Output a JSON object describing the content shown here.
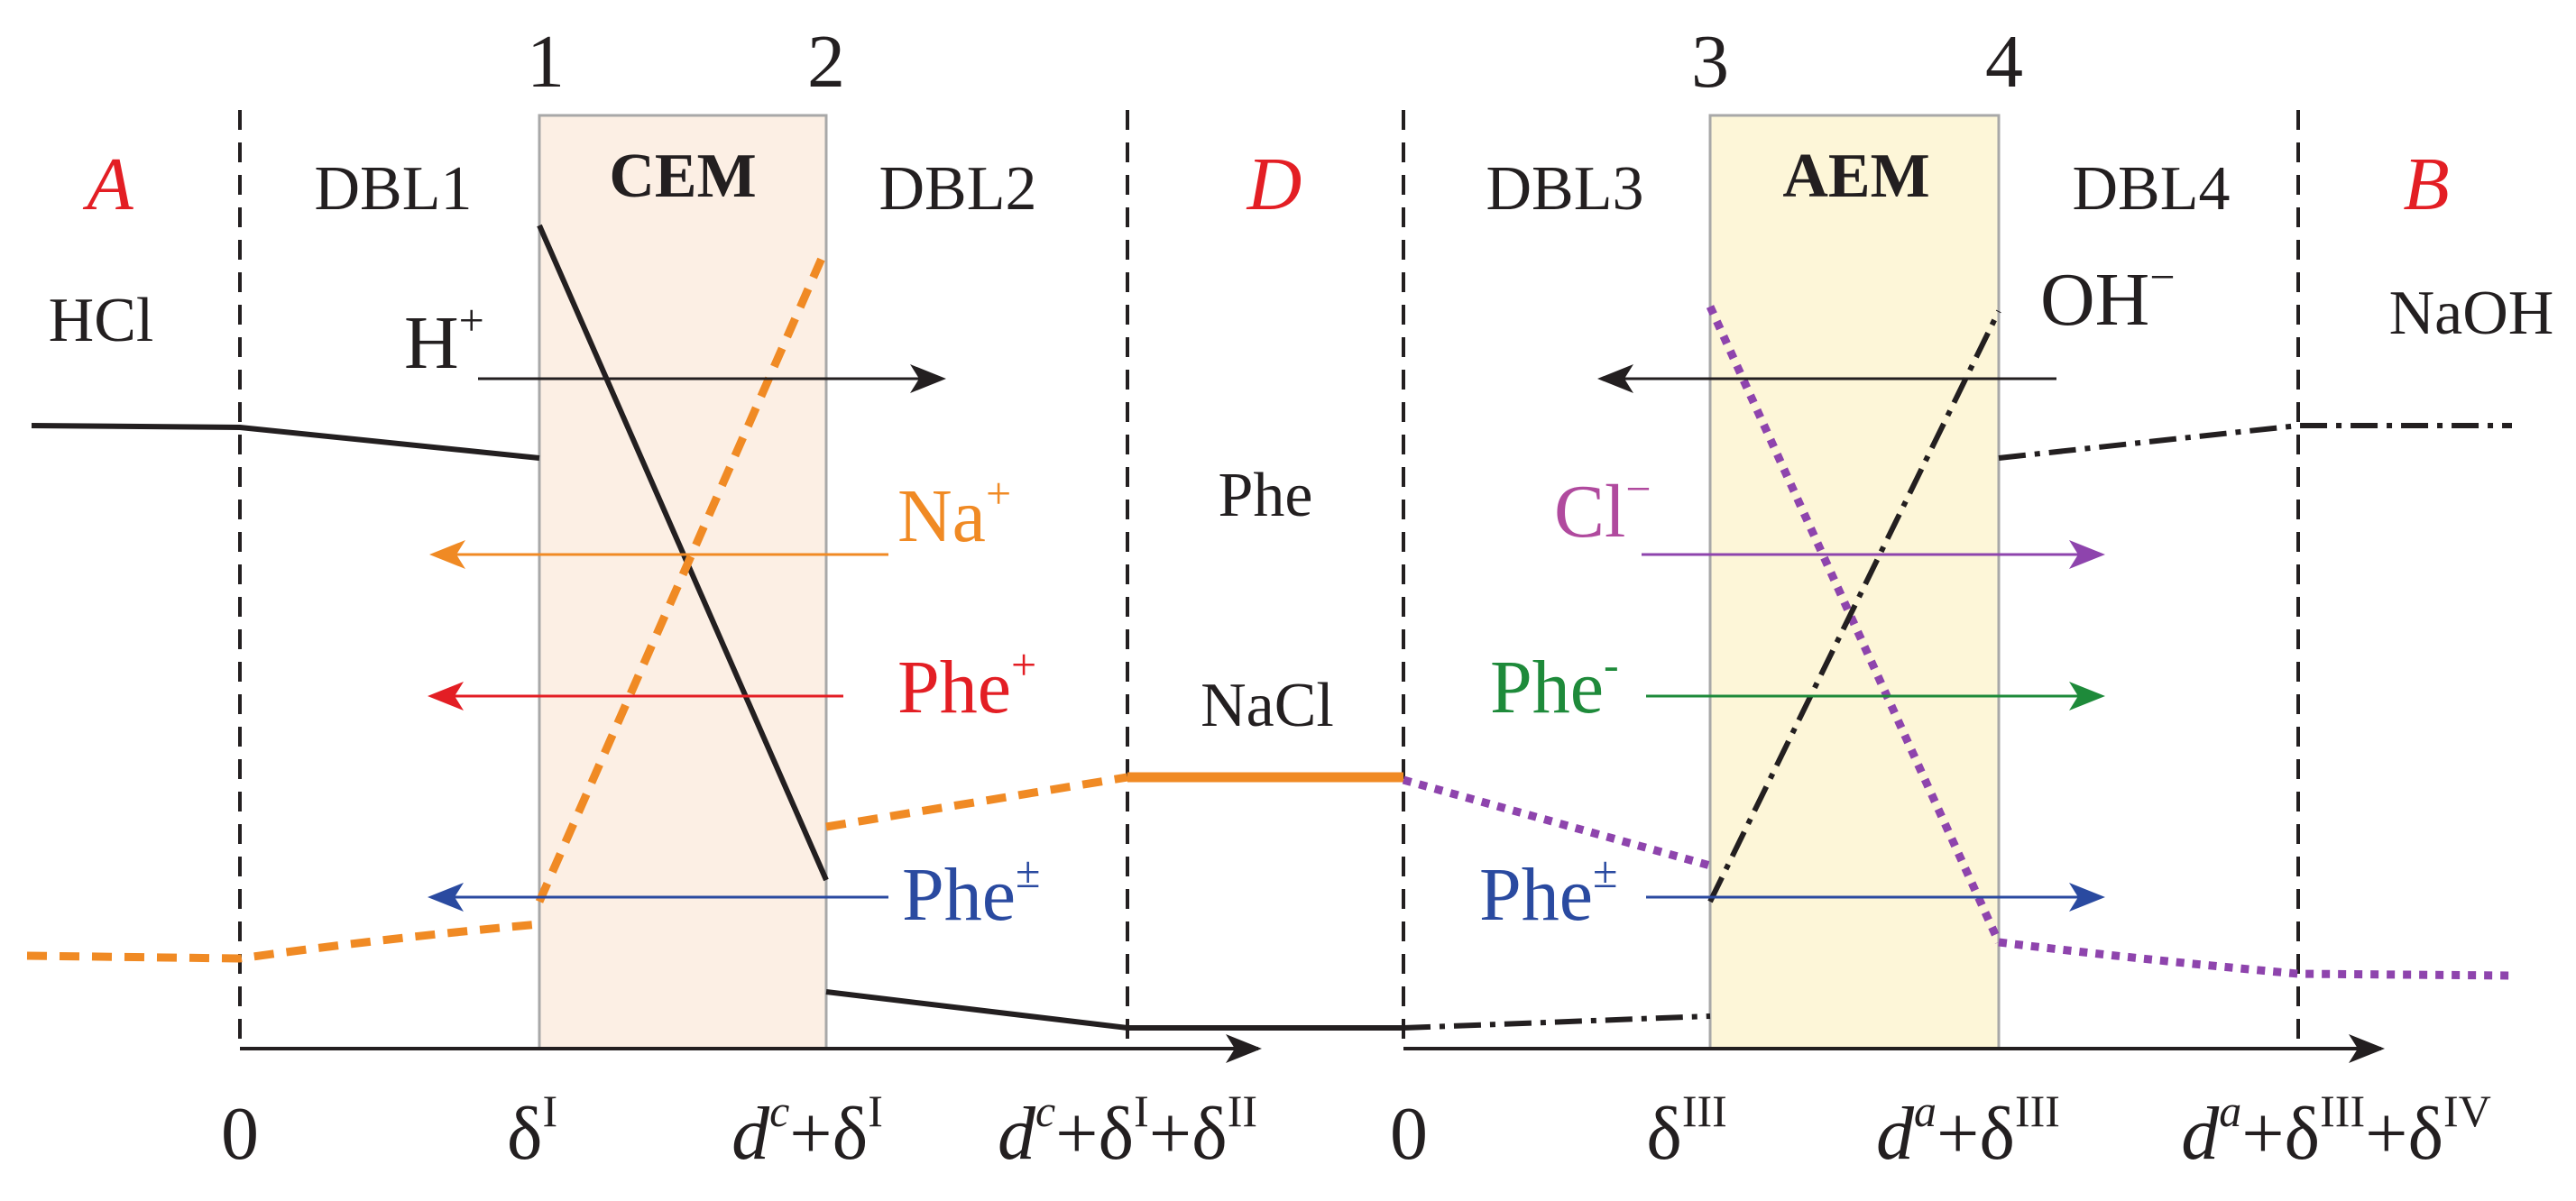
{
  "interfaces": {
    "i1": "1",
    "i2": "2",
    "i3": "3",
    "i4": "4"
  },
  "regions": {
    "A": "A",
    "D": "D",
    "B": "B",
    "dbl1": "DBL1",
    "dbl2": "DBL2",
    "dbl3": "DBL3",
    "dbl4": "DBL4",
    "cem": "CEM",
    "aem": "AEM"
  },
  "solutions": {
    "left": "HCl",
    "right": "NaOH",
    "mid_top": "Phe",
    "mid_bottom": "NaCl"
  },
  "ions": {
    "h": {
      "base": "H",
      "charge": "+"
    },
    "oh": {
      "base": "OH",
      "charge": "−"
    },
    "na": {
      "base": "Na",
      "charge": "+"
    },
    "phe_plus": {
      "base": "Phe",
      "charge": "+"
    },
    "phe_zw_left": {
      "base": "Phe",
      "charge": "±"
    },
    "cl": {
      "base": "Cl",
      "charge": "−"
    },
    "phe_minus": {
      "base": "Phe",
      "charge": "-"
    },
    "phe_zw_right": {
      "base": "Phe",
      "charge": "±"
    }
  },
  "axis_labels": {
    "zero_left": "0",
    "delta_i": {
      "base": "δ",
      "sup": "I"
    },
    "dc_delta_i": {
      "d": "d",
      "d_sup": "c",
      "rest": "+δ",
      "sup1": "I"
    },
    "dc_delta_i_ii": {
      "d": "d",
      "d_sup": "c",
      "plus1": "+δ",
      "sup1": "I",
      "plus2": "+δ",
      "sup2": "II"
    },
    "zero_right": "0",
    "delta_iii": {
      "base": "δ",
      "sup": "III"
    },
    "da_delta_iii": {
      "d": "d",
      "d_sup": "a",
      "rest": "+δ",
      "sup1": "III"
    },
    "da_delta_iii_iv": {
      "d": "d",
      "d_sup": "a",
      "plus1": "+δ",
      "sup1": "III",
      "plus2": "+δ",
      "sup2": "IV"
    }
  },
  "colors": {
    "text": "#231f20",
    "red_label": "#e31e24",
    "cem_fill": "#fcefe4",
    "aem_fill": "#fdf6d8",
    "orange": "#f08a24",
    "red": "#e31e24",
    "blue": "#2a4aa0",
    "purple": "#8e44ad",
    "magenta": "#b04a9e",
    "green": "#1e8a3a",
    "black": "#231f20"
  }
}
